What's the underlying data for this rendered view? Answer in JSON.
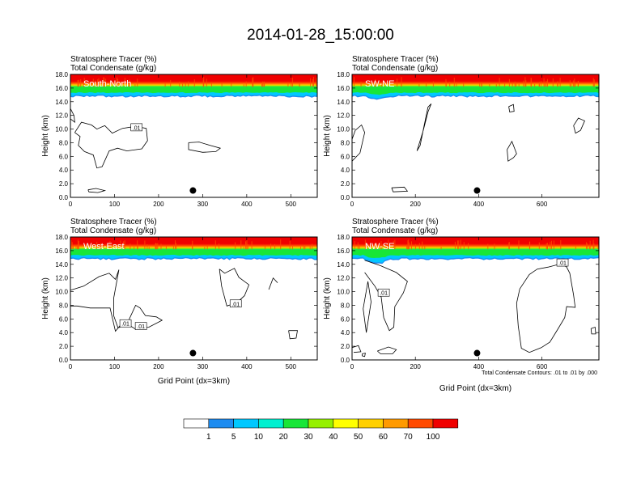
{
  "figure_title": "2014-01-28_15:00:00",
  "panel_title_line1": "Stratosphere Tracer   (%)",
  "panel_title_line2": "Total Condensate   (g/kg)",
  "ylabel": "Height (km)",
  "xlabel": "Grid Point (dx=3km)",
  "contour_note": "Total Condensate Contours: .01 to .01 by .000",
  "contour_label": ".01",
  "colorbar": {
    "levels": [
      "1",
      "5",
      "10",
      "20",
      "30",
      "40",
      "50",
      "60",
      "70",
      "100"
    ],
    "colors": [
      "#ffffff",
      "#1e8cf0",
      "#00c8ff",
      "#00f0d0",
      "#18e638",
      "#96f000",
      "#ffff00",
      "#ffd000",
      "#ff9a00",
      "#ff4a00",
      "#f00000"
    ]
  },
  "chart_data": [
    {
      "type": "heatmap",
      "panel_label": "South-North",
      "x_ticks": [
        "0",
        "100",
        "200",
        "300",
        "400",
        "500"
      ],
      "x_tick_values": [
        0,
        100,
        200,
        300,
        400,
        500
      ],
      "xlim": [
        0,
        560
      ],
      "y_ticks": [
        "0.0",
        "2.0",
        "4.0",
        "6.0",
        "8.0",
        "10.0",
        "12.0",
        "14.0",
        "16.0",
        "18.0"
      ],
      "ylim": [
        0,
        18
      ],
      "marker_x": 278,
      "contour_labels": [
        {
          "x": 150,
          "y": 10.2
        }
      ],
      "contours": [
        [
          [
            10,
            9.5
          ],
          [
            25,
            11
          ],
          [
            48,
            10.6
          ],
          [
            60,
            10
          ],
          [
            78,
            10.5
          ],
          [
            95,
            9.4
          ],
          [
            118,
            10.1
          ],
          [
            148,
            10.4
          ],
          [
            172,
            10.1
          ],
          [
            175,
            8.3
          ],
          [
            162,
            7.1
          ],
          [
            128,
            6.8
          ],
          [
            107,
            7.2
          ],
          [
            88,
            6.8
          ],
          [
            72,
            4.5
          ],
          [
            60,
            4.3
          ],
          [
            52,
            6.2
          ],
          [
            32,
            6.7
          ],
          [
            18,
            7.6
          ],
          [
            22,
            8.9
          ],
          [
            10,
            9.5
          ]
        ],
        [
          [
            268,
            8.0
          ],
          [
            292,
            8.1
          ],
          [
            317,
            7.6
          ],
          [
            340,
            7.2
          ],
          [
            330,
            6.7
          ],
          [
            300,
            6.6
          ],
          [
            268,
            7.0
          ],
          [
            268,
            8.0
          ]
        ],
        [
          [
            40,
            1.1
          ],
          [
            58,
            1.3
          ],
          [
            78,
            1.0
          ],
          [
            62,
            0.7
          ],
          [
            42,
            0.8
          ],
          [
            40,
            1.1
          ]
        ],
        [
          [
            -2,
            13
          ],
          [
            8,
            12
          ],
          [
            10,
            11
          ],
          [
            0,
            11.5
          ]
        ]
      ]
    },
    {
      "type": "heatmap",
      "panel_label": "SW-NE",
      "x_ticks": [
        "0",
        "200",
        "400",
        "600"
      ],
      "x_tick_values": [
        0,
        200,
        400,
        600
      ],
      "xlim": [
        0,
        780
      ],
      "y_ticks": [
        "0.0",
        "2.0",
        "4.0",
        "6.0",
        "8.0",
        "10.0",
        "12.0",
        "14.0",
        "16.0",
        "18.0"
      ],
      "ylim": [
        0,
        18
      ],
      "marker_x": 395,
      "contour_labels": [],
      "contours": [
        [
          [
            0,
            5.3
          ],
          [
            25,
            6.5
          ],
          [
            40,
            9.5
          ],
          [
            30,
            10.6
          ],
          [
            10,
            9.8
          ],
          [
            0,
            8.5
          ]
        ],
        [
          [
            205,
            6.8
          ],
          [
            225,
            9.8
          ],
          [
            240,
            12.5
          ],
          [
            250,
            13.7
          ],
          [
            240,
            13.2
          ],
          [
            228,
            10.6
          ],
          [
            215,
            7.6
          ],
          [
            205,
            6.8
          ]
        ],
        [
          [
            125,
            1.4
          ],
          [
            165,
            1.5
          ],
          [
            175,
            0.9
          ],
          [
            130,
            0.8
          ],
          [
            125,
            1.4
          ]
        ],
        [
          [
            490,
            7.0
          ],
          [
            505,
            8.2
          ],
          [
            520,
            6.4
          ],
          [
            510,
            5.8
          ],
          [
            493,
            5.3
          ],
          [
            490,
            7.0
          ]
        ],
        [
          [
            700,
            10.5
          ],
          [
            715,
            11.6
          ],
          [
            735,
            11.2
          ],
          [
            722,
            9.8
          ],
          [
            706,
            9.4
          ],
          [
            700,
            10.5
          ]
        ],
        [
          [
            495,
            13.3
          ],
          [
            510,
            13.6
          ],
          [
            512,
            12.6
          ],
          [
            498,
            12.5
          ],
          [
            495,
            13.3
          ]
        ]
      ]
    },
    {
      "type": "heatmap",
      "panel_label": "West-East",
      "x_ticks": [
        "0",
        "100",
        "200",
        "300",
        "400",
        "500"
      ],
      "x_tick_values": [
        0,
        100,
        200,
        300,
        400,
        500
      ],
      "xlim": [
        0,
        560
      ],
      "y_ticks": [
        "0.0",
        "2.0",
        "4.0",
        "6.0",
        "8.0",
        "10.0",
        "12.0",
        "14.0",
        "16.0",
        "18.0"
      ],
      "ylim": [
        0,
        18
      ],
      "marker_x": 278,
      "contour_labels": [
        {
          "x": 125,
          "y": 5.3
        },
        {
          "x": 160,
          "y": 4.9
        },
        {
          "x": 375,
          "y": 8.2
        }
      ],
      "contours": [
        [
          [
            0,
            10.2
          ],
          [
            30,
            10.8
          ],
          [
            65,
            12.2
          ],
          [
            88,
            12.7
          ],
          [
            102,
            11.8
          ],
          [
            110,
            13.2
          ],
          [
            98,
            9.0
          ],
          [
            98,
            6.5
          ],
          [
            108,
            4.7
          ],
          [
            128,
            5.2
          ],
          [
            148,
            8.0
          ],
          [
            158,
            7.6
          ],
          [
            170,
            6.5
          ],
          [
            195,
            6.3
          ],
          [
            208,
            5.8
          ],
          [
            178,
            4.8
          ],
          [
            148,
            4.5
          ],
          [
            120,
            5.6
          ],
          [
            102,
            4.2
          ],
          [
            90,
            7.6
          ],
          [
            45,
            7.6
          ],
          [
            15,
            7.9
          ],
          [
            0,
            7.9
          ]
        ],
        [
          [
            338,
            13.3
          ],
          [
            350,
            12.7
          ],
          [
            372,
            13.4
          ],
          [
            382,
            12.1
          ],
          [
            405,
            11.0
          ],
          [
            395,
            9.4
          ],
          [
            378,
            8.4
          ],
          [
            355,
            7.9
          ],
          [
            343,
            10.8
          ],
          [
            338,
            13.3
          ]
        ],
        [
          [
            495,
            4.3
          ],
          [
            515,
            4.3
          ],
          [
            512,
            3.2
          ],
          [
            498,
            3.1
          ],
          [
            495,
            4.3
          ]
        ],
        [
          [
            450,
            10.3
          ],
          [
            460,
            12.0
          ],
          [
            470,
            11.3
          ]
        ]
      ]
    },
    {
      "type": "heatmap",
      "panel_label": "NW-SE",
      "x_ticks": [
        "0",
        "200",
        "400",
        "600"
      ],
      "x_tick_values": [
        0,
        200,
        400,
        600
      ],
      "xlim": [
        0,
        780
      ],
      "y_ticks": [
        "0.0",
        "2.0",
        "4.0",
        "6.0",
        "8.0",
        "10.0",
        "12.0",
        "14.0",
        "16.0",
        "18.0"
      ],
      "ylim": [
        0,
        18
      ],
      "marker_x": 395,
      "contour_labels": [
        {
          "x": 100,
          "y": 9.8
        },
        {
          "x": 665,
          "y": 14.2
        }
      ],
      "contours": [
        [
          [
            40,
            14.6
          ],
          [
            90,
            13.8
          ],
          [
            140,
            12.8
          ],
          [
            175,
            11.5
          ],
          [
            162,
            9.8
          ],
          [
            135,
            7.8
          ],
          [
            132,
            4.8
          ],
          [
            118,
            4.3
          ],
          [
            100,
            6.2
          ],
          [
            92,
            9.2
          ],
          [
            72,
            10.8
          ],
          [
            40,
            12.8
          ]
        ],
        [
          [
            530,
            10.4
          ],
          [
            560,
            12.5
          ],
          [
            585,
            13.3
          ],
          [
            620,
            13.6
          ],
          [
            662,
            14.1
          ],
          [
            678,
            13.6
          ],
          [
            688,
            12.7
          ],
          [
            692,
            11.6
          ],
          [
            700,
            9.5
          ],
          [
            705,
            7.7
          ],
          [
            678,
            7.8
          ],
          [
            672,
            6.2
          ],
          [
            650,
            4.5
          ],
          [
            625,
            2.6
          ],
          [
            598,
            1.8
          ],
          [
            560,
            1.1
          ],
          [
            535,
            1.7
          ],
          [
            525,
            5.0
          ],
          [
            520,
            8.3
          ],
          [
            530,
            10.4
          ]
        ],
        [
          [
            80,
            1.3
          ],
          [
            115,
            1.9
          ],
          [
            140,
            1.5
          ],
          [
            128,
            0.9
          ],
          [
            90,
            0.9
          ],
          [
            80,
            1.3
          ]
        ],
        [
          [
            0,
            1.8
          ],
          [
            20,
            2.1
          ],
          [
            28,
            1.2
          ],
          [
            5,
            1.1
          ]
        ],
        [
          [
            32,
            0.9
          ],
          [
            42,
            1.0
          ],
          [
            40,
            0.5
          ],
          [
            32,
            0.6
          ],
          [
            32,
            0.9
          ]
        ],
        [
          [
            755,
            4.6
          ],
          [
            768,
            4.8
          ],
          [
            770,
            3.8
          ],
          [
            757,
            3.8
          ],
          [
            755,
            4.6
          ]
        ],
        [
          [
            45,
            4.0
          ],
          [
            60,
            8.5
          ],
          [
            50,
            11.5
          ],
          [
            35,
            7.5
          ],
          [
            45,
            4.0
          ]
        ]
      ]
    }
  ]
}
